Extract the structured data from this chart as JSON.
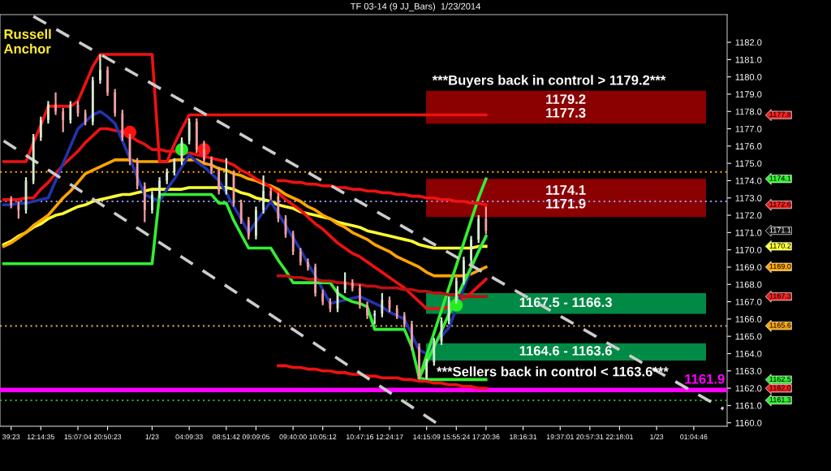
{
  "chart_data": {
    "type": "candlestick",
    "title": "TF 03-14 (9 JJ_Bars)  1/23/2014",
    "categories": [
      null,
      "39:23",
      null,
      null,
      null,
      "12:14:35",
      null,
      null,
      null,
      null,
      "15:07:04",
      null,
      null,
      null,
      "20:50:23",
      null,
      null,
      null,
      null,
      null,
      "1/23",
      null,
      null,
      null,
      null,
      "04:09:33",
      null,
      null,
      null,
      null,
      "08:51:42",
      null,
      null,
      null,
      "09:09:05",
      null,
      null,
      null,
      null,
      "09:40:00",
      null,
      null,
      null,
      "10:05:12",
      null,
      null,
      null,
      null,
      "10:47:16",
      null,
      null,
      null,
      "12:24:17",
      null,
      null,
      null,
      null,
      "14:15:09",
      null,
      null,
      null,
      "15:55:24",
      null,
      null,
      null,
      "17:20:36",
      null,
      null,
      null,
      null,
      "18:16:31",
      null,
      null,
      null,
      null,
      "19:37:01",
      null,
      null,
      null,
      "20:57:31",
      null,
      null,
      null,
      "22:18:01",
      null,
      null,
      null,
      null,
      "1/23",
      null,
      null,
      null,
      null,
      "01:04:46",
      null,
      null,
      null,
      null
    ],
    "ohlc": [
      null,
      [
        1172.9,
        1173.1,
        1172.4,
        1172.6
      ],
      [
        1172.6,
        1172.8,
        1171.8,
        1172.3
      ],
      [
        1172.3,
        1174.2,
        1172.1,
        1174.0
      ],
      [
        1174.0,
        1176.7,
        1173.8,
        1176.5
      ],
      [
        1176.5,
        1177.7,
        1176.3,
        1177.5
      ],
      [
        1177.5,
        1178.6,
        1177.3,
        1178.4
      ],
      [
        1178.4,
        1179.1,
        1177.8,
        1178.0
      ],
      [
        1178.0,
        1178.2,
        1176.8,
        1177.5
      ],
      [
        1177.5,
        1178.6,
        1177.3,
        1178.4
      ],
      [
        1178.4,
        1178.6,
        1177.7,
        1177.9
      ],
      [
        1177.9,
        1178.1,
        1177.2,
        1177.4
      ],
      [
        1177.4,
        1180.0,
        1177.2,
        1179.8
      ],
      [
        1179.8,
        1181.3,
        1179.6,
        1180.4
      ],
      [
        1180.4,
        1180.6,
        1178.9,
        1179.1
      ],
      [
        1179.1,
        1179.3,
        1177.7,
        1177.9
      ],
      [
        1177.9,
        1178.1,
        1176.3,
        1176.5
      ],
      [
        1176.5,
        1176.7,
        1174.9,
        1175.1
      ],
      [
        1175.1,
        1175.3,
        1173.5,
        1173.7
      ],
      [
        1173.7,
        1173.9,
        1171.6,
        1172.3
      ],
      [
        1172.3,
        1173.4,
        1172.1,
        1173.2
      ],
      [
        1173.2,
        1174.2,
        1173.0,
        1174.0
      ],
      [
        1174.0,
        1174.7,
        1173.8,
        1174.5
      ],
      [
        1174.5,
        1175.3,
        1174.3,
        1175.1
      ],
      [
        1175.1,
        1176.5,
        1174.9,
        1176.3
      ],
      [
        1176.3,
        1177.6,
        1176.1,
        1177.4
      ],
      [
        1177.4,
        1177.6,
        1175.6,
        1175.8
      ],
      [
        1175.8,
        1176.3,
        1175.0,
        1175.2
      ],
      [
        1175.2,
        1175.4,
        1174.4,
        1174.6
      ],
      [
        1174.6,
        1174.8,
        1173.2,
        1173.4
      ],
      [
        1173.4,
        1175.3,
        1173.2,
        1174.4
      ],
      [
        1174.4,
        1174.6,
        1172.5,
        1172.7
      ],
      [
        1172.7,
        1172.9,
        1171.5,
        1171.7
      ],
      [
        1171.7,
        1171.9,
        1170.6,
        1170.8
      ],
      [
        1170.8,
        1172.5,
        1170.6,
        1172.3
      ],
      [
        1172.3,
        1174.3,
        1172.1,
        1173.4
      ],
      [
        1173.4,
        1173.6,
        1172.9,
        1173.1
      ],
      [
        1173.1,
        1173.3,
        1171.6,
        1171.8
      ],
      [
        1171.8,
        1172.0,
        1170.7,
        1170.9
      ],
      [
        1170.9,
        1171.1,
        1169.7,
        1169.9
      ],
      [
        1169.9,
        1170.1,
        1169.1,
        1169.3
      ],
      [
        1169.3,
        1169.5,
        1168.8,
        1169.0
      ],
      [
        1169.0,
        1169.2,
        1167.3,
        1167.5
      ],
      [
        1167.5,
        1167.7,
        1166.8,
        1167.0
      ],
      [
        1167.0,
        1167.2,
        1166.4,
        1166.6
      ],
      [
        1166.6,
        1167.9,
        1166.4,
        1167.7
      ],
      [
        1167.7,
        1168.7,
        1167.5,
        1168.1
      ],
      [
        1168.1,
        1168.3,
        1167.6,
        1167.8
      ],
      [
        1167.8,
        1168.0,
        1166.6,
        1166.8
      ],
      [
        1166.8,
        1167.0,
        1166.0,
        1166.2
      ],
      [
        1166.2,
        1166.5,
        1165.7,
        1166.3
      ],
      [
        1166.3,
        1167.5,
        1166.1,
        1167.1
      ],
      [
        1167.1,
        1167.3,
        1166.4,
        1166.6
      ],
      [
        1166.6,
        1166.8,
        1166.0,
        1166.2
      ],
      [
        1166.2,
        1166.4,
        1165.5,
        1165.7
      ],
      [
        1165.7,
        1165.9,
        1164.2,
        1164.4
      ],
      [
        1164.4,
        1164.6,
        1162.5,
        1162.6
      ],
      [
        1162.6,
        1163.7,
        1162.5,
        1163.5
      ],
      [
        1163.5,
        1164.9,
        1163.3,
        1164.7
      ],
      [
        1164.7,
        1166.1,
        1164.5,
        1165.9
      ],
      [
        1165.9,
        1167.3,
        1165.7,
        1167.1
      ],
      [
        1167.1,
        1168.4,
        1166.9,
        1168.2
      ],
      [
        1168.2,
        1169.6,
        1168.0,
        1169.4
      ],
      [
        1169.4,
        1170.8,
        1169.2,
        1170.6
      ],
      [
        1170.6,
        1172.0,
        1170.4,
        1171.8
      ],
      [
        1171.8,
        1172.5,
        1170.9,
        1171.1
      ],
      null,
      null,
      null,
      null,
      null,
      null,
      null,
      null,
      null,
      null,
      null,
      null,
      null,
      null,
      null,
      null,
      null,
      null,
      null,
      null,
      null,
      null,
      null,
      null,
      null,
      null,
      null,
      null,
      null,
      null,
      null,
      null
    ],
    "series": [
      {
        "type": "line",
        "color": "#ffff33",
        "values": [
          1170.3,
          1170.5,
          1170.8,
          1171.0,
          1171.3,
          1171.5,
          1171.8,
          1172.0,
          1172.1,
          1172.3,
          1172.5,
          1172.6,
          1172.8,
          1172.9,
          1173.0,
          1173.1,
          1173.2,
          1173.2,
          1173.3,
          1173.4,
          1173.5,
          1173.5,
          1173.5,
          1173.5,
          1173.5,
          1173.6,
          1173.6,
          1173.6,
          1173.6,
          1173.6,
          1173.6,
          1173.5,
          1173.3,
          1173.2,
          1173.0,
          1172.9,
          1172.8,
          1172.6,
          1172.5,
          1172.4,
          1172.2,
          1172.1,
          1172.0,
          1171.9,
          1171.8,
          1171.6,
          1171.5,
          1171.4,
          1171.3,
          1171.1,
          1171.0,
          1170.9,
          1170.8,
          1170.7,
          1170.6,
          1170.5,
          1170.3,
          1170.2,
          1170.1,
          1170.1,
          1170.1,
          1170.1,
          1170.1,
          1170.1,
          1170.2,
          1170.2,
          null,
          null,
          null,
          null,
          null,
          null,
          null,
          null,
          null,
          null,
          null,
          null,
          null,
          null,
          null,
          null,
          null,
          null,
          null,
          null,
          null,
          null,
          null,
          null,
          null,
          null,
          null,
          null,
          null,
          null,
          null,
          null
        ]
      },
      {
        "type": "line",
        "color": "#ffa500",
        "values": [
          1170.2,
          1170.4,
          1170.7,
          1171.0,
          1171.4,
          1171.7,
          1172.0,
          1172.5,
          1173.0,
          1173.4,
          1173.9,
          1174.4,
          1174.6,
          1174.8,
          1175.0,
          1175.2,
          1175.2,
          1175.2,
          1175.1,
          1175.1,
          1175.1,
          1175.1,
          1175.1,
          1175.2,
          1175.2,
          1175.2,
          1175.2,
          1175.0,
          1174.9,
          1174.7,
          1174.6,
          1174.4,
          1174.3,
          1174.1,
          1174.0,
          1173.8,
          1173.7,
          1173.5,
          1173.2,
          1173.0,
          1172.8,
          1172.5,
          1172.3,
          1172.0,
          1171.8,
          1171.5,
          1171.3,
          1171.0,
          1170.8,
          1170.6,
          1170.3,
          1170.1,
          1169.9,
          1169.6,
          1169.4,
          1169.2,
          1169.0,
          1168.7,
          1168.5,
          1168.5,
          1168.5,
          1168.5,
          1168.5,
          1168.6,
          1168.8,
          1169.0,
          null,
          null,
          null,
          null,
          null,
          null,
          null,
          null,
          null,
          null,
          null,
          null,
          null,
          null,
          null,
          null,
          null,
          null,
          null,
          null,
          null,
          null,
          null,
          null,
          null,
          null,
          null,
          null,
          null,
          null,
          null,
          null
        ]
      },
      {
        "type": "line",
        "color": "#ee1111",
        "values": [
          1172.9,
          1172.9,
          1172.9,
          1173.0,
          1173.0,
          1173.5,
          1173.9,
          1174.4,
          1174.9,
          1175.3,
          1175.7,
          1176.2,
          1176.6,
          1177.0,
          1177.0,
          1176.9,
          1176.8,
          1176.6,
          1176.3,
          1176.1,
          1175.8,
          1175.8,
          1175.7,
          1175.7,
          1175.6,
          1175.6,
          1175.5,
          1175.4,
          1175.3,
          1175.2,
          1175.1,
          1174.9,
          1174.6,
          1174.4,
          1174.1,
          1173.9,
          1173.6,
          1173.3,
          1172.9,
          1172.6,
          1172.3,
          1171.9,
          1171.5,
          1171.2,
          1170.8,
          1170.4,
          1170.1,
          1169.8,
          1169.6,
          1169.3,
          1169.0,
          1168.7,
          1168.4,
          1168.1,
          1167.8,
          1167.4,
          1167.0,
          1166.6,
          1166.6,
          1166.6,
          1166.7,
          1167.0,
          1167.2,
          1167.5,
          1167.9,
          1168.3,
          null,
          null,
          null,
          null,
          null,
          null,
          null,
          null,
          null,
          null,
          null,
          null,
          null,
          null,
          null,
          null,
          null,
          null,
          null,
          null,
          null,
          null,
          null,
          null,
          null,
          null,
          null,
          null,
          null,
          null,
          null,
          null
        ]
      },
      {
        "type": "line",
        "color": "#2233aa",
        "values": [
          1172.6,
          1172.6,
          1172.7,
          1172.7,
          1172.8,
          1172.9,
          1173.0,
          1174.0,
          1175.0,
          1176.0,
          1177.0,
          1177.4,
          1177.8,
          1178.0,
          1177.7,
          1177.3,
          1176.3,
          1175.3,
          1174.2,
          1173.2,
          1173.0,
          1172.8,
          1173.5,
          1174.1,
          1174.8,
          1175.5,
          1175.1,
          1174.8,
          1174.4,
          1174.0,
          1173.3,
          1172.5,
          1171.8,
          1171.0,
          1171.6,
          1172.2,
          1172.8,
          1172.1,
          1171.4,
          1170.7,
          1170.0,
          1169.2,
          1168.5,
          1167.7,
          1166.9,
          1167.0,
          1167.1,
          1167.2,
          1167.3,
          1167.1,
          1166.9,
          1166.7,
          1166.4,
          1166.2,
          1166.0,
          1165.1,
          1164.2,
          1164.0,
          1164.5,
          1165.0,
          1165.5,
          1166.6,
          1167.8,
          1168.9,
          1170.0,
          1170.7,
          null,
          null,
          null,
          null,
          null,
          null,
          null,
          null,
          null,
          null,
          null,
          null,
          null,
          null,
          null,
          null,
          null,
          null,
          null,
          null,
          null,
          null,
          null,
          null,
          null,
          null,
          null,
          null,
          null,
          null,
          null,
          null
        ]
      },
      {
        "type": "line",
        "color": "#ee1111",
        "values": [
          1175.1,
          1175.1,
          1175.1,
          1175.1,
          1176.2,
          1177.2,
          1178.3,
          1178.3,
          1178.3,
          1178.3,
          1178.6,
          1179.6,
          1180.6,
          1181.3,
          1181.3,
          1181.3,
          1181.3,
          1181.3,
          1181.3,
          1181.3,
          1181.3,
          1175.1,
          1175.1,
          1176.1,
          1177.0,
          1177.8,
          1177.8,
          1177.8,
          1177.8,
          1177.8,
          1177.8,
          1177.8,
          1177.8,
          1177.8,
          1177.8,
          1177.8,
          1177.8,
          1177.8,
          1177.8,
          1177.8,
          1177.8,
          1177.8,
          1177.8,
          1177.8,
          1177.8,
          1177.8,
          1177.8,
          1177.8,
          1177.8,
          1177.8,
          1177.8,
          1177.8,
          1177.8,
          1177.8,
          1177.8,
          1177.8,
          1177.8,
          1177.8,
          1177.8,
          1177.8,
          1177.8,
          1177.8,
          1177.8,
          1177.8,
          1177.8,
          1177.8,
          null,
          null,
          null,
          null,
          null,
          null,
          null,
          null,
          null,
          null,
          null,
          null,
          null,
          null,
          null,
          null,
          null,
          null,
          null,
          null,
          null,
          null,
          null,
          null,
          null,
          null,
          null,
          null,
          null,
          null,
          null,
          null
        ]
      },
      {
        "type": "line",
        "color": "#33ee33",
        "values": [
          1169.2,
          1169.2,
          1169.2,
          1169.2,
          1169.2,
          1169.2,
          1169.2,
          1169.2,
          1169.2,
          1169.2,
          1169.2,
          1169.2,
          1169.2,
          1169.2,
          1169.2,
          1169.2,
          1169.2,
          1169.2,
          1169.2,
          1169.2,
          1169.2,
          1173.2,
          1173.2,
          1173.2,
          1173.2,
          1173.2,
          1173.2,
          1173.2,
          1173.2,
          1172.7,
          1172.7,
          1171.7,
          1170.9,
          1170.1,
          1170.1,
          1170.1,
          1170.1,
          1169.4,
          1168.8,
          1168.1,
          1168.1,
          1168.1,
          1168.1,
          1168.1,
          1168.1,
          1167.5,
          1167.2,
          1167.0,
          1166.9,
          1166.7,
          1165.4,
          1165.4,
          1165.4,
          1165.4,
          1165.4,
          1164.4,
          1162.6,
          1162.5,
          1162.5,
          1162.5,
          1162.5,
          1162.5,
          1162.5,
          1162.5,
          1162.5,
          1162.5,
          null,
          null,
          null,
          null,
          null,
          null,
          null,
          null,
          null,
          null,
          null,
          null,
          null,
          null,
          null,
          null,
          null,
          null,
          null,
          null,
          null,
          null,
          null,
          null,
          null,
          null,
          null,
          null,
          null,
          null,
          null,
          null
        ]
      },
      {
        "type": "line",
        "color": "#33ee33",
        "values": [
          null,
          null,
          null,
          null,
          null,
          null,
          null,
          null,
          null,
          null,
          null,
          null,
          null,
          null,
          null,
          null,
          null,
          null,
          null,
          null,
          null,
          null,
          null,
          null,
          null,
          null,
          null,
          null,
          null,
          null,
          null,
          null,
          null,
          null,
          null,
          null,
          null,
          null,
          null,
          null,
          null,
          null,
          null,
          null,
          null,
          null,
          null,
          null,
          null,
          null,
          null,
          null,
          null,
          null,
          null,
          null,
          1162.6,
          1163.9,
          1165.2,
          1166.5,
          1167.8,
          1169.1,
          1170.4,
          1171.7,
          1173.0,
          1174.1,
          null,
          null,
          null,
          null,
          null,
          null,
          null,
          null,
          null,
          null,
          null,
          null,
          null,
          null,
          null,
          null,
          null,
          null,
          null,
          null,
          null,
          null,
          null,
          null,
          null,
          null,
          null,
          null,
          null,
          null,
          null,
          null
        ]
      },
      {
        "type": "line",
        "color": "#33ee33",
        "values": [
          null,
          null,
          null,
          null,
          null,
          null,
          null,
          null,
          null,
          null,
          null,
          null,
          null,
          null,
          null,
          null,
          null,
          null,
          null,
          null,
          null,
          null,
          null,
          null,
          null,
          null,
          null,
          null,
          null,
          null,
          null,
          null,
          null,
          null,
          null,
          null,
          null,
          null,
          null,
          null,
          null,
          null,
          null,
          null,
          null,
          null,
          null,
          null,
          null,
          null,
          null,
          null,
          null,
          null,
          null,
          null,
          1162.6,
          1163.5,
          1164.4,
          1165.3,
          1166.3,
          1167.2,
          1168.1,
          1169.0,
          1169.9,
          1170.8,
          null,
          null,
          null,
          null,
          null,
          null,
          null,
          null,
          null,
          null,
          null,
          null,
          null,
          null,
          null,
          null,
          null,
          null,
          null,
          null,
          null,
          null,
          null,
          null,
          null,
          null,
          null,
          null,
          null,
          null,
          null,
          null
        ]
      },
      {
        "type": "line",
        "color": "#ee1111",
        "values": [
          null,
          null,
          null,
          null,
          null,
          null,
          null,
          null,
          null,
          null,
          null,
          null,
          null,
          null,
          null,
          null,
          null,
          null,
          null,
          null,
          null,
          null,
          null,
          null,
          null,
          null,
          null,
          null,
          null,
          null,
          null,
          null,
          null,
          null,
          null,
          null,
          null,
          1174.0,
          1174.0,
          1173.9,
          1173.9,
          1173.8,
          1173.8,
          1173.7,
          1173.7,
          1173.6,
          1173.6,
          1173.5,
          1173.5,
          1173.4,
          1173.4,
          1173.3,
          1173.3,
          1173.2,
          1173.2,
          1173.1,
          1173.1,
          1173.0,
          1173.0,
          1172.9,
          1172.9,
          1172.8,
          1172.8,
          1172.7,
          1172.7,
          1172.6,
          null,
          null,
          null,
          null,
          null,
          null,
          null,
          null,
          null,
          null,
          null,
          null,
          null,
          null,
          null,
          null,
          null,
          null,
          null,
          null,
          null,
          null,
          null,
          null,
          null,
          null,
          null,
          null,
          null,
          null,
          null,
          null
        ]
      },
      {
        "type": "line",
        "color": "#bb1111",
        "values": [
          null,
          null,
          null,
          null,
          null,
          null,
          null,
          null,
          null,
          null,
          null,
          null,
          null,
          null,
          null,
          null,
          null,
          null,
          null,
          null,
          null,
          null,
          null,
          null,
          null,
          null,
          null,
          null,
          null,
          null,
          null,
          null,
          null,
          null,
          null,
          null,
          null,
          1168.5,
          1168.5,
          1168.4,
          1168.4,
          1168.3,
          1168.3,
          1168.2,
          1168.2,
          1168.1,
          1168.1,
          1168.0,
          1168.0,
          1167.9,
          1167.9,
          1167.8,
          1167.8,
          1167.8,
          1167.7,
          1167.7,
          1167.6,
          1167.6,
          1167.5,
          1167.5,
          1167.4,
          1167.4,
          1167.3,
          1167.3,
          1167.3,
          1167.3,
          null,
          null,
          null,
          null,
          null,
          null,
          null,
          null,
          null,
          null,
          null,
          null,
          null,
          null,
          null,
          null,
          null,
          null,
          null,
          null,
          null,
          null,
          null,
          null,
          null,
          null,
          null,
          null,
          null,
          null,
          null,
          null
        ]
      },
      {
        "type": "line",
        "color": "#ee1111",
        "values": [
          null,
          null,
          null,
          null,
          null,
          null,
          null,
          null,
          null,
          null,
          null,
          null,
          null,
          null,
          null,
          null,
          null,
          null,
          null,
          null,
          null,
          null,
          null,
          null,
          null,
          null,
          null,
          null,
          null,
          null,
          null,
          null,
          null,
          null,
          null,
          null,
          null,
          1163.3,
          1163.3,
          1163.2,
          1163.2,
          1163.1,
          1163.1,
          1163.0,
          1163.0,
          1162.9,
          1162.9,
          1162.8,
          1162.8,
          1162.7,
          1162.7,
          1162.6,
          1162.6,
          1162.6,
          1162.5,
          1162.5,
          1162.4,
          1162.4,
          1162.3,
          1162.3,
          1162.2,
          1162.2,
          1162.1,
          1162.1,
          1162.0,
          1162.0,
          null,
          null,
          null,
          null,
          null,
          null,
          null,
          null,
          null,
          null,
          null,
          null,
          null,
          null,
          null,
          null,
          null,
          null,
          null,
          null,
          null,
          null,
          null,
          null,
          null,
          null,
          null,
          null,
          null,
          null,
          null,
          null
        ]
      },
      {
        "type": "line",
        "color": "#cccccc",
        "line_style": "dashed",
        "values": [
          null,
          null,
          null,
          null,
          1183.5,
          null,
          null,
          null,
          null,
          null,
          null,
          null,
          null,
          null,
          null,
          null,
          null,
          null,
          null,
          null,
          null,
          null,
          null,
          null,
          null,
          null,
          null,
          null,
          null,
          null,
          null,
          null,
          null,
          null,
          null,
          null,
          null,
          null,
          null,
          null,
          null,
          null,
          null,
          null,
          null,
          null,
          null,
          null,
          null,
          null,
          null,
          null,
          null,
          null,
          null,
          null,
          null,
          null,
          null,
          null,
          null,
          null,
          null,
          null,
          null,
          null,
          null,
          null,
          null,
          null,
          null,
          null,
          null,
          null,
          null,
          null,
          null,
          null,
          null,
          null,
          null,
          null,
          null,
          null,
          null,
          null,
          null,
          null,
          null,
          null,
          null,
          null,
          null,
          null,
          null,
          null,
          null,
          1160.8
        ]
      },
      {
        "type": "line",
        "color": "#cccccc",
        "line_style": "dashed",
        "values": [
          1176.3,
          null,
          null,
          null,
          null,
          null,
          null,
          null,
          null,
          null,
          null,
          null,
          null,
          null,
          null,
          null,
          null,
          null,
          null,
          null,
          null,
          null,
          null,
          null,
          null,
          null,
          null,
          null,
          null,
          null,
          null,
          null,
          null,
          null,
          null,
          null,
          null,
          null,
          null,
          null,
          null,
          null,
          null,
          null,
          null,
          null,
          null,
          null,
          null,
          null,
          null,
          null,
          null,
          null,
          null,
          null,
          null,
          null,
          null,
          1159.8,
          null,
          null,
          null,
          null,
          null,
          null,
          null,
          null,
          null,
          null,
          null,
          null,
          null,
          null,
          null,
          null,
          null,
          null,
          null,
          null,
          null,
          null,
          null,
          null,
          null,
          null,
          null,
          null,
          null,
          null,
          null,
          null,
          null,
          null,
          null,
          null,
          null,
          null
        ]
      },
      {
        "type": "scatter",
        "color": "#ff1111",
        "values": [
          null,
          null,
          null,
          null,
          null,
          null,
          null,
          null,
          null,
          null,
          null,
          null,
          null,
          null,
          null,
          null,
          null,
          1176.8,
          null,
          null,
          null,
          null,
          null,
          null,
          null,
          null,
          null,
          1175.8,
          null,
          null,
          null,
          null,
          null,
          null,
          null,
          null,
          null,
          null,
          null,
          null,
          null,
          null,
          null,
          null,
          null,
          null,
          null,
          null,
          null,
          null,
          null,
          null,
          null,
          null,
          null,
          null,
          null,
          null,
          null,
          null,
          null,
          null,
          null,
          null,
          null,
          null,
          null,
          null,
          null,
          null,
          null,
          null,
          null,
          null,
          null,
          null,
          null,
          null,
          null,
          null,
          null,
          null,
          null,
          null,
          null,
          null,
          null,
          null,
          null,
          null,
          null,
          null,
          null,
          null,
          null,
          null,
          null,
          null
        ]
      },
      {
        "type": "scatter",
        "color": "#22ee22",
        "values": [
          null,
          null,
          null,
          null,
          null,
          null,
          null,
          null,
          null,
          null,
          null,
          null,
          null,
          null,
          null,
          null,
          null,
          null,
          null,
          null,
          null,
          null,
          null,
          null,
          1175.8,
          null,
          null,
          null,
          null,
          null,
          null,
          null,
          null,
          null,
          null,
          null,
          null,
          null,
          null,
          null,
          null,
          null,
          null,
          null,
          null,
          null,
          null,
          null,
          null,
          null,
          null,
          null,
          null,
          null,
          null,
          null,
          null,
          null,
          null,
          null,
          null,
          1166.8,
          null,
          null,
          null,
          null,
          null,
          null,
          null,
          null,
          null,
          null,
          null,
          null,
          null,
          null,
          null,
          null,
          null,
          null,
          null,
          null,
          null,
          null,
          null,
          null,
          null,
          null,
          null,
          null,
          null,
          null,
          null,
          null,
          null,
          null,
          null,
          null
        ]
      }
    ],
    "ylim": [
      1159.8,
      1183.6
    ],
    "yticks": [
      {
        "value": 1160,
        "label": "1160.0"
      },
      {
        "value": 1161,
        "label": "1161.0"
      },
      {
        "value": 1162,
        "label": "1162.0"
      },
      {
        "value": 1163,
        "label": "1163.0"
      },
      {
        "value": 1164,
        "label": "1164.0"
      },
      {
        "value": 1165,
        "label": "1165.0"
      },
      {
        "value": 1166,
        "label": "1166.0"
      },
      {
        "value": 1167,
        "label": "1167.0"
      },
      {
        "value": 1168,
        "label": "1168.0"
      },
      {
        "value": 1169,
        "label": "1169.0"
      },
      {
        "value": 1170,
        "label": "1170.0"
      },
      {
        "value": 1171,
        "label": "1171.0"
      },
      {
        "value": 1172,
        "label": "1172.0"
      },
      {
        "value": 1173,
        "label": "1173.0"
      },
      {
        "value": 1174,
        "label": "1174.0"
      },
      {
        "value": 1175,
        "label": "1175.0"
      },
      {
        "value": 1176,
        "label": "1176.0"
      },
      {
        "value": 1177,
        "label": "1177.0"
      },
      {
        "value": 1178,
        "label": "1178.0"
      },
      {
        "value": 1179,
        "label": "1179.0"
      },
      {
        "value": 1180,
        "label": "1180.0"
      },
      {
        "value": 1181,
        "label": "1181.0"
      },
      {
        "value": 1182,
        "label": "1182.0"
      }
    ],
    "bands": [
      {
        "axis": "y",
        "from": 1177.3,
        "to": 1179.2,
        "label": "1179.2\n1177.3",
        "color": "#8b0000"
      },
      {
        "axis": "y",
        "from": 1171.9,
        "to": 1174.1,
        "label": "1174.1\n1171.9",
        "color": "#8b0000"
      },
      {
        "axis": "y",
        "from": 1166.3,
        "to": 1167.5,
        "label": "1167.5 - 1166.3",
        "color": "#008a45"
      },
      {
        "axis": "y",
        "from": 1163.6,
        "to": 1164.6,
        "label": "1164.6 - 1163.6",
        "color": "#008a45"
      }
    ],
    "ref_lines": [
      {
        "axis": "y",
        "value": 1161.9,
        "label": "1161.9",
        "color": "#ff00ff"
      },
      {
        "axis": "y",
        "value": 1174.5,
        "color": "#ffa500",
        "line_style": "dotted"
      },
      {
        "axis": "y",
        "value": 1172.8,
        "color": "#9999ff",
        "line_style": "dotted"
      },
      {
        "axis": "y",
        "value": 1165.6,
        "color": "#cc9966",
        "line_style": "dotted"
      },
      {
        "axis": "y",
        "value": 1161.3,
        "color": "#33aa33",
        "line_style": "dotted"
      }
    ],
    "annotations": [
      "Russell\nAnchor",
      "***Buyers back in control > 1179.2***",
      "***Sellers back in control < 1163.6***",
      "1177.8",
      "1174.1",
      "1172.6",
      "1171.1",
      "1170.2",
      "1169.0",
      "1167.3",
      "1165.6",
      "1162.5",
      "1162.0",
      "1161.3"
    ]
  }
}
